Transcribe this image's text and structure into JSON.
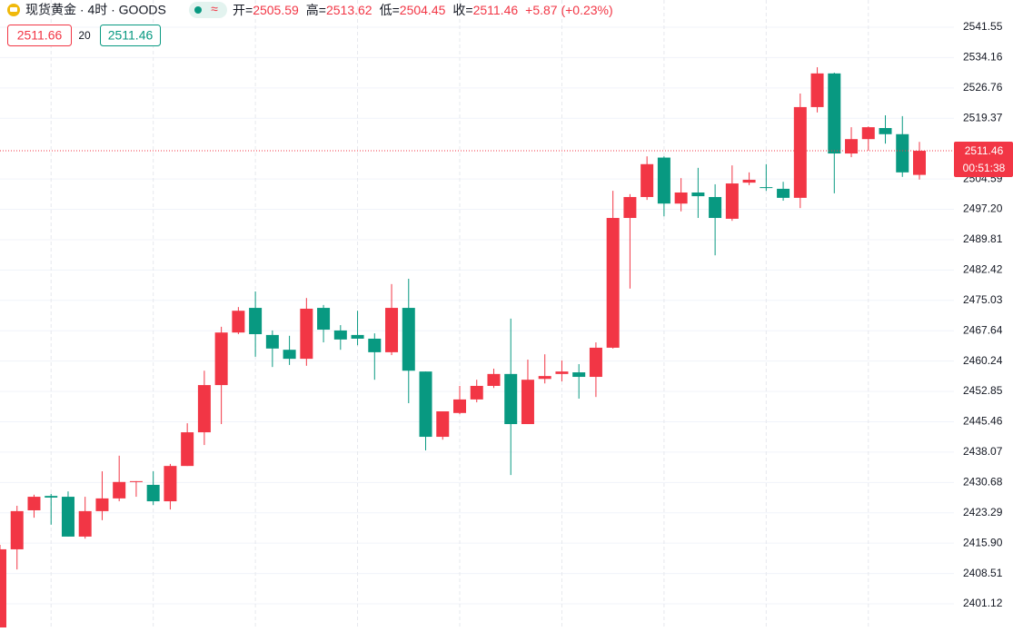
{
  "chart_data": {
    "type": "candlestick",
    "symbol": "现货黄金 · 4时 · GOODS",
    "status_icon": "≈",
    "ohlc_legend": [
      {
        "label": "开=",
        "value": 2505.59
      },
      {
        "label": "高=",
        "value": 2513.62
      },
      {
        "label": "低=",
        "value": 2504.45
      },
      {
        "label": "收=",
        "value": 2511.46
      }
    ],
    "change": "+5.87 (+0.23%)",
    "ask": 2511.66,
    "spread": 20,
    "bid": 2511.46,
    "countdown": "00:51:38",
    "up_color": "#f23645",
    "down_color": "#089981",
    "grid": true,
    "ylim": [
      2395.37,
      2548.18
    ],
    "yticks": [
      2401.12,
      2408.51,
      {
        "value": 2415.9,
        "label": "2415.90"
      },
      2423.29,
      2430.68,
      2438.07,
      2445.46,
      2452.85,
      2460.24,
      2467.64,
      2475.03,
      2482.42,
      2489.81,
      {
        "value": 2497.2,
        "label": "2497.20"
      },
      2504.59,
      2519.37,
      2526.76,
      2534.16,
      2541.55
    ],
    "open": [
      2393.4,
      2414.4,
      2423.9,
      2427.4,
      2427.2,
      2417.5,
      2423.7,
      2426.8,
      2430.8,
      2430.1,
      2426.1,
      2434.7,
      2442.9,
      2454.4,
      2467.2,
      2473.2,
      2466.6,
      2463.0,
      2460.8,
      2473.2,
      2467.7,
      2466.6,
      2465.7,
      2462.4,
      2473.2,
      2457.7,
      2441.8,
      2447.6,
      2450.9,
      2454.2,
      2457.1,
      2444.9,
      2455.9,
      2457.1,
      2457.5,
      2456.4,
      2463.5,
      2495.1,
      2500.2,
      2509.8,
      2498.6,
      2501.3,
      2500.2,
      2494.9,
      2503.7,
      2502.6,
      2502.2,
      2500.0,
      2522.1,
      2530.3,
      2510.8,
      2514.3,
      2517.0,
      2515.5,
      2505.59
    ],
    "high": [
      2415.5,
      2425.0,
      2427.7,
      2427.9,
      2428.5,
      2427.2,
      2433.4,
      2437.2,
      2431.0,
      2433.4,
      2435.2,
      2445.1,
      2457.9,
      2468.6,
      2473.4,
      2477.2,
      2467.7,
      2466.4,
      2475.6,
      2473.9,
      2469.0,
      2472.5,
      2467.0,
      2479.0,
      2480.3,
      2457.7,
      2448.0,
      2454.2,
      2455.7,
      2458.4,
      2470.6,
      2460.6,
      2461.9,
      2460.4,
      2459.5,
      2464.8,
      2501.7,
      2500.9,
      2510.1,
      2510.1,
      2504.8,
      2507.3,
      2503.3,
      2507.9,
      2506.2,
      2508.2,
      2503.9,
      2525.4,
      2531.8,
      2530.5,
      2517.2,
      2517.4,
      2520.1,
      2519.9,
      2513.62
    ],
    "low": [
      2390.0,
      2409.5,
      2422.1,
      2420.4,
      2417.5,
      2417.0,
      2421.5,
      2426.1,
      2427.2,
      2425.2,
      2424.1,
      2434.7,
      2439.8,
      2444.9,
      2466.8,
      2461.3,
      2458.8,
      2459.3,
      2459.1,
      2464.8,
      2463.0,
      2464.1,
      2455.7,
      2461.7,
      2450.0,
      2438.5,
      2441.1,
      2447.3,
      2450.2,
      2453.7,
      2432.5,
      2444.9,
      2454.8,
      2455.3,
      2451.1,
      2451.5,
      2463.3,
      2477.9,
      2499.5,
      2495.5,
      2496.7,
      2495.1,
      2486.0,
      2494.4,
      2503.1,
      2501.7,
      2499.3,
      2497.5,
      2520.8,
      2501.1,
      2509.9,
      2511.5,
      2513.2,
      2505.1,
      2504.45
    ],
    "close": [
      2414.4,
      2423.7,
      2427.2,
      2427.0,
      2417.5,
      2423.7,
      2426.8,
      2430.8,
      2431.0,
      2426.1,
      2434.7,
      2442.9,
      2454.4,
      2467.2,
      2472.5,
      2466.8,
      2463.3,
      2460.8,
      2473.0,
      2467.9,
      2465.5,
      2465.7,
      2462.4,
      2473.2,
      2457.9,
      2441.8,
      2448.0,
      2450.9,
      2454.2,
      2457.1,
      2444.9,
      2455.7,
      2456.6,
      2457.7,
      2456.4,
      2463.5,
      2495.1,
      2500.2,
      2508.2,
      2498.6,
      2501.3,
      2500.4,
      2495.1,
      2503.5,
      2504.4,
      2502.4,
      2500.0,
      2522.1,
      2530.3,
      2510.8,
      2514.3,
      2517.2,
      2515.5,
      2506.2,
      2511.46
    ]
  }
}
